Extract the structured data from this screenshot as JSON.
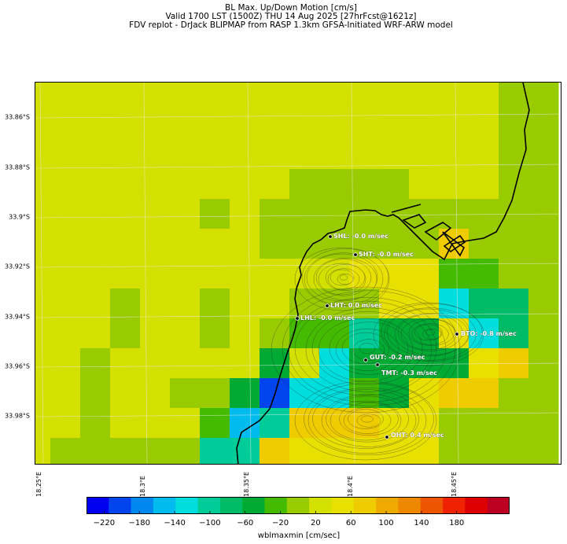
{
  "title": {
    "line1": "BL Max. Up/Down Motion [cm/s]",
    "line2": "Valid 1700 LST (1500Z) THU 14 Aug 2025 [27hrFcst@1621z]",
    "line3": "FDV replot - DrJack BLIPMAP from RASP 1.3km GFSA-Initiated WRF-ARW model"
  },
  "lat_labels": [
    "33.86°S",
    "33.88°S",
    "33.9°S",
    "33.92°S",
    "33.94°S",
    "33.96°S",
    "33.98°S"
  ],
  "lon_labels": [
    "18.25°E",
    "18.3°E",
    "18.35°E",
    "18.4°E",
    "18.45°E"
  ],
  "colorbar": {
    "title": "wblmaxmin [cm/sec]",
    "tick_labels": [
      "−220",
      "−180",
      "−140",
      "−100",
      "−60",
      "−20",
      "20",
      "60",
      "100",
      "140",
      "180"
    ],
    "colors": [
      "#0000f0",
      "#0044ee",
      "#0088ee",
      "#00bbee",
      "#00dddd",
      "#00cc99",
      "#00bb66",
      "#00aa33",
      "#44bb00",
      "#99cc00",
      "#d4e000",
      "#e8e000",
      "#eecc00",
      "#eeaa00",
      "#ee8800",
      "#ee5500",
      "#ee2200",
      "#dd0000",
      "#bb0022"
    ]
  },
  "sites": [
    {
      "code": "SHL",
      "label": "SHL: -0.0 m/sec"
    },
    {
      "code": "SHT",
      "label": "SHT: -0.0 m/sec"
    },
    {
      "code": "LHT",
      "label": "LHT: 0.0 m/sec"
    },
    {
      "code": "LHL",
      "label": "LHL: -0.0 m/sec"
    },
    {
      "code": "BTO",
      "label": "BTO: -0.8 m/sec"
    },
    {
      "code": "GUT",
      "label": "GUT: -0.2 m/sec"
    },
    {
      "code": "TMT",
      "label": "TMT: -0.3 m/sec"
    },
    {
      "code": "OHT",
      "label": "OHT: 0.4 m/sec"
    }
  ]
}
